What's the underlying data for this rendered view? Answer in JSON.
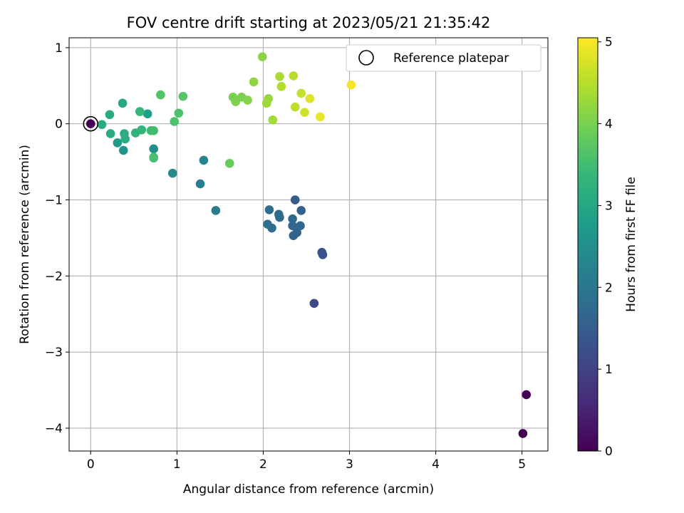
{
  "chart_data": {
    "type": "scatter",
    "title": "FOV centre drift starting at 2023/05/21 21:35:42",
    "xlabel": "Angular distance from reference (arcmin)",
    "ylabel": "Rotation from reference (arcmin)",
    "xlim": [
      -0.25,
      5.3
    ],
    "ylim": [
      -4.3,
      1.13
    ],
    "xticks": [
      0,
      1,
      2,
      3,
      4,
      5
    ],
    "xtick_labels": [
      "0",
      "1",
      "2",
      "3",
      "4",
      "5"
    ],
    "yticks": [
      1,
      0,
      -1,
      -2,
      -3,
      -4
    ],
    "ytick_labels": [
      "1",
      "0",
      "−1",
      "−2",
      "−3",
      "−4"
    ],
    "grid": true,
    "legend": {
      "position": "top-right",
      "entries": [
        {
          "label": "Reference platepar",
          "marker": "open-circle"
        }
      ]
    },
    "colorbar": {
      "label": "Hours from first FF file",
      "range": [
        0,
        5.05
      ],
      "ticks": [
        0,
        1,
        2,
        3,
        4,
        5
      ],
      "tick_labels": [
        "0",
        "1",
        "2",
        "3",
        "4",
        "5"
      ],
      "colormap": "viridis",
      "stops": [
        "#440154",
        "#482878",
        "#3e4989",
        "#31688e",
        "#26828e",
        "#1f9e89",
        "#35b779",
        "#6ece58",
        "#b5de2b",
        "#fde725"
      ]
    },
    "reference": {
      "x": 0,
      "y": 0
    },
    "points": [
      {
        "x": 0.0,
        "y": 0.0,
        "h": 0.0
      },
      {
        "x": 5.05,
        "y": -3.56,
        "h": 0.0
      },
      {
        "x": 5.01,
        "y": -4.07,
        "h": 0.0
      },
      {
        "x": 2.59,
        "y": -2.36,
        "h": 1.1
      },
      {
        "x": 2.68,
        "y": -1.69,
        "h": 1.25
      },
      {
        "x": 2.69,
        "y": -1.72,
        "h": 1.3
      },
      {
        "x": 2.37,
        "y": -1.0,
        "h": 1.5
      },
      {
        "x": 2.44,
        "y": -1.14,
        "h": 1.55
      },
      {
        "x": 2.35,
        "y": -1.47,
        "h": 1.6
      },
      {
        "x": 2.39,
        "y": -1.43,
        "h": 1.6
      },
      {
        "x": 2.34,
        "y": -1.34,
        "h": 1.65
      },
      {
        "x": 2.43,
        "y": -1.34,
        "h": 1.65
      },
      {
        "x": 2.34,
        "y": -1.25,
        "h": 1.7
      },
      {
        "x": 2.18,
        "y": -1.19,
        "h": 1.75
      },
      {
        "x": 2.19,
        "y": -1.23,
        "h": 1.75
      },
      {
        "x": 2.07,
        "y": -1.13,
        "h": 1.8
      },
      {
        "x": 2.1,
        "y": -1.37,
        "h": 1.8
      },
      {
        "x": 2.05,
        "y": -1.32,
        "h": 1.85
      },
      {
        "x": 1.45,
        "y": -1.14,
        "h": 2.1
      },
      {
        "x": 1.27,
        "y": -0.79,
        "h": 2.15
      },
      {
        "x": 1.31,
        "y": -0.48,
        "h": 2.25
      },
      {
        "x": 0.95,
        "y": -0.65,
        "h": 2.4
      },
      {
        "x": 0.73,
        "y": -0.33,
        "h": 2.5
      },
      {
        "x": 0.38,
        "y": -0.35,
        "h": 2.6
      },
      {
        "x": 0.31,
        "y": -0.25,
        "h": 2.7
      },
      {
        "x": 0.66,
        "y": 0.13,
        "h": 2.8
      },
      {
        "x": 0.37,
        "y": 0.27,
        "h": 3.0
      },
      {
        "x": 0.22,
        "y": 0.12,
        "h": 3.05
      },
      {
        "x": 0.13,
        "y": -0.01,
        "h": 3.1
      },
      {
        "x": 0.23,
        "y": -0.13,
        "h": 3.1
      },
      {
        "x": 0.39,
        "y": -0.13,
        "h": 3.15
      },
      {
        "x": 0.4,
        "y": -0.2,
        "h": 3.15
      },
      {
        "x": 0.52,
        "y": -0.12,
        "h": 3.25
      },
      {
        "x": 0.59,
        "y": -0.08,
        "h": 3.3
      },
      {
        "x": 0.57,
        "y": 0.16,
        "h": 3.35
      },
      {
        "x": 0.73,
        "y": -0.44,
        "h": 3.4
      },
      {
        "x": 0.7,
        "y": -0.09,
        "h": 3.45
      },
      {
        "x": 0.73,
        "y": -0.09,
        "h": 3.5
      },
      {
        "x": 0.73,
        "y": -0.45,
        "h": 3.55
      },
      {
        "x": 0.97,
        "y": 0.03,
        "h": 3.6
      },
      {
        "x": 1.02,
        "y": 0.14,
        "h": 3.6
      },
      {
        "x": 0.81,
        "y": 0.38,
        "h": 3.65
      },
      {
        "x": 1.07,
        "y": 0.36,
        "h": 3.7
      },
      {
        "x": 1.61,
        "y": -0.52,
        "h": 3.85
      },
      {
        "x": 1.65,
        "y": 0.35,
        "h": 4.0
      },
      {
        "x": 1.68,
        "y": 0.29,
        "h": 4.05
      },
      {
        "x": 1.75,
        "y": 0.35,
        "h": 4.05
      },
      {
        "x": 1.82,
        "y": 0.31,
        "h": 4.1
      },
      {
        "x": 1.99,
        "y": 0.88,
        "h": 4.15
      },
      {
        "x": 1.89,
        "y": 0.55,
        "h": 4.2
      },
      {
        "x": 2.06,
        "y": 0.33,
        "h": 4.25
      },
      {
        "x": 2.04,
        "y": 0.27,
        "h": 4.3
      },
      {
        "x": 2.11,
        "y": 0.05,
        "h": 4.35
      },
      {
        "x": 2.19,
        "y": 0.62,
        "h": 4.4
      },
      {
        "x": 2.21,
        "y": 0.49,
        "h": 4.45
      },
      {
        "x": 2.35,
        "y": 0.63,
        "h": 4.5
      },
      {
        "x": 2.37,
        "y": 0.22,
        "h": 4.55
      },
      {
        "x": 2.44,
        "y": 0.4,
        "h": 4.6
      },
      {
        "x": 2.48,
        "y": 0.15,
        "h": 4.7
      },
      {
        "x": 2.54,
        "y": 0.33,
        "h": 4.8
      },
      {
        "x": 2.66,
        "y": 0.09,
        "h": 4.9
      },
      {
        "x": 3.02,
        "y": 0.51,
        "h": 5.0
      }
    ]
  }
}
